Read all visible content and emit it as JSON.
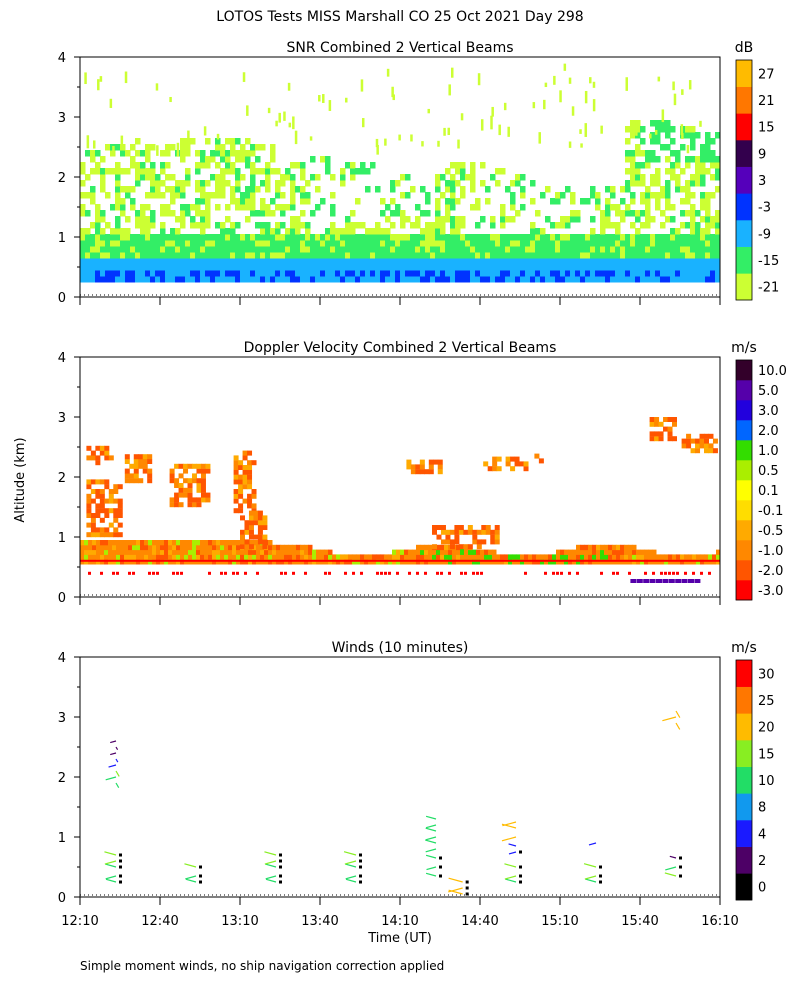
{
  "page": {
    "title": "LOTOS Tests MISS Marshall CO  25 Oct 2021 Day 298",
    "y_axis_label": "Altitude (km)",
    "x_axis_label": "Time (UT)",
    "footnote": "Simple moment winds, no ship navigation correction applied"
  },
  "chart_data": [
    {
      "type": "heatmap",
      "title": "SNR Combined 2 Vertical Beams",
      "ylim": [
        0,
        4
      ],
      "yticks": [
        "0",
        "1",
        "2",
        "3",
        "4"
      ],
      "colorbar": {
        "unit": "dB",
        "labels": [
          "-21",
          "-15",
          "-9",
          "-3",
          "3",
          "9",
          "15",
          "21",
          "27"
        ],
        "colors": [
          "#ccff33",
          "#33ee66",
          "#19b2ff",
          "#0033ff",
          "#5500bb",
          "#33004d",
          "#ff0000",
          "#ff7700",
          "#ffbb00"
        ]
      },
      "layers": [
        {
          "label": "-21",
          "color": "#ccff33",
          "alt_range": [
            0.3,
            2.6
          ]
        },
        {
          "label": "-15",
          "color": "#33ee66",
          "alt_range": [
            0.3,
            1.0
          ]
        },
        {
          "label": "-9",
          "color": "#19b2ff",
          "alt_range": [
            0.2,
            0.6
          ]
        },
        {
          "label": "-3",
          "color": "#0033ff",
          "alt_range": [
            0.2,
            0.45
          ]
        }
      ]
    },
    {
      "type": "heatmap",
      "title": "Doppler Velocity Combined 2 Vertical Beams",
      "ylim": [
        0,
        4
      ],
      "yticks": [
        "0",
        "1",
        "2",
        "3",
        "4"
      ],
      "colorbar": {
        "unit": "m/s",
        "labels": [
          "-3.0",
          "-2.0",
          "-1.0",
          "-0.5",
          "-0.1",
          "0.1",
          "0.5",
          "1.0",
          "2.0",
          "3.0",
          "5.0",
          "10.0"
        ],
        "colors": [
          "#ff0000",
          "#ff5500",
          "#ff8800",
          "#ffaa00",
          "#ffdd00",
          "#ffff00",
          "#aaee00",
          "#33dd00",
          "#0066ff",
          "#2200dd",
          "#5500aa",
          "#33002a"
        ]
      }
    },
    {
      "type": "scatter",
      "title": "Winds (10 minutes)",
      "ylim": [
        0,
        4
      ],
      "yticks": [
        "0",
        "1",
        "2",
        "3",
        "4"
      ],
      "xticks": [
        "12:10",
        "12:40",
        "13:10",
        "13:40",
        "14:10",
        "14:40",
        "15:10",
        "15:40",
        "16:10"
      ],
      "colorbar": {
        "unit": "m/s",
        "labels": [
          "0",
          "2",
          "4",
          "8",
          "10",
          "15",
          "20",
          "25",
          "30"
        ],
        "colors": [
          "#000000",
          "#4d0066",
          "#1a1aff",
          "#1199ee",
          "#22dd66",
          "#88ee22",
          "#ffbb00",
          "#ff7700",
          "#ff0000"
        ]
      },
      "wind_profiles": [
        {
          "time": "12:25",
          "alts": [
            0.25,
            0.35,
            0.5,
            0.6,
            0.7,
            1.9,
            2.0,
            2.1,
            2.2,
            2.3,
            2.4,
            2.5,
            2.6
          ],
          "speeds": [
            12,
            13,
            14,
            15,
            16,
            12,
            13,
            16,
            6,
            4,
            2,
            2,
            2
          ]
        },
        {
          "time": "12:55",
          "alts": [
            0.25,
            0.35,
            0.5
          ],
          "speeds": [
            12,
            14,
            16
          ]
        },
        {
          "time": "13:25",
          "alts": [
            0.25,
            0.35,
            0.5,
            0.6,
            0.7
          ],
          "speeds": [
            12,
            13,
            14,
            15,
            16
          ]
        },
        {
          "time": "13:55",
          "alts": [
            0.25,
            0.35,
            0.5,
            0.6,
            0.7
          ],
          "speeds": [
            12,
            13,
            14,
            15,
            17
          ]
        },
        {
          "time": "14:25",
          "alts": [
            0.35,
            0.5,
            0.65,
            0.8,
            0.9,
            1.0,
            1.1,
            1.2,
            1.3
          ],
          "speeds": [
            12,
            11,
            12,
            13,
            14,
            13,
            13,
            12,
            12
          ]
        },
        {
          "time": "14:35",
          "alts": [
            0.05,
            0.15,
            0.25
          ],
          "speeds": [
            22,
            23,
            22
          ]
        },
        {
          "time": "14:55",
          "alts": [
            0.25,
            0.35,
            0.5,
            0.75,
            0.85,
            1.0,
            1.15,
            1.25
          ],
          "speeds": [
            14,
            15,
            16,
            5,
            6,
            22,
            22,
            21
          ]
        },
        {
          "time": "15:25",
          "alts": [
            0.25,
            0.35,
            0.5,
            0.9
          ],
          "speeds": [
            14,
            15,
            17,
            5
          ]
        },
        {
          "time": "15:55",
          "alts": [
            0.35,
            0.5,
            0.65,
            2.9,
            3.0,
            3.1
          ],
          "speeds": [
            15,
            14,
            3,
            21,
            21,
            22
          ]
        }
      ]
    }
  ]
}
